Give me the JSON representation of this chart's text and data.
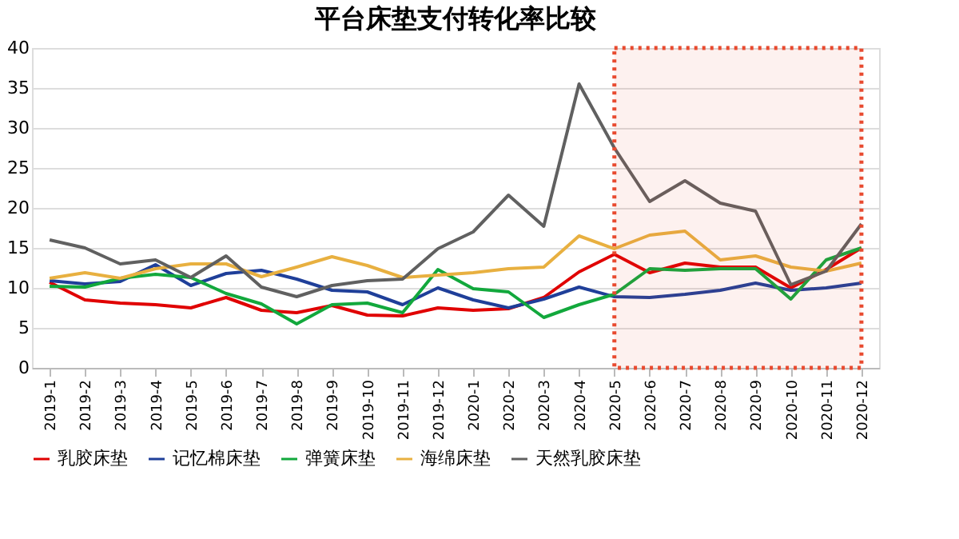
{
  "chart_data": {
    "type": "line",
    "title": "平台床垫支付转化率比较",
    "categories": [
      "2019-1",
      "2019-2",
      "2019-3",
      "2019-4",
      "2019-5",
      "2019-6",
      "2019-7",
      "2019-8",
      "2019-9",
      "2019-10",
      "2019-11",
      "2019-12",
      "2020-1",
      "2020-2",
      "2020-3",
      "2020-4",
      "2020-5",
      "2020-6",
      "2020-7",
      "2020-8",
      "2020-9",
      "2020-10",
      "2020-11",
      "2020-12"
    ],
    "series": [
      {
        "name": "乳胶床垫",
        "color": "#e00000",
        "values": [
          10.7,
          8.5,
          8.1,
          7.9,
          7.5,
          8.8,
          7.2,
          6.9,
          7.8,
          6.6,
          6.5,
          7.5,
          7.2,
          7.4,
          8.8,
          12,
          14.2,
          11.9,
          13.1,
          12.6,
          12.6,
          10,
          12.3,
          15
        ]
      },
      {
        "name": "记忆棉床垫",
        "color": "#1f3f99",
        "values": [
          10.9,
          10.5,
          10.8,
          12.9,
          10.3,
          11.8,
          12.2,
          11.1,
          9.7,
          9.5,
          7.9,
          10,
          8.5,
          7.5,
          8.6,
          10.1,
          8.9,
          8.8,
          9.2,
          9.7,
          10.6,
          9.7,
          10,
          10.6
        ]
      },
      {
        "name": "弹簧床垫",
        "color": "#12a83c",
        "values": [
          10.2,
          10.1,
          11.2,
          11.7,
          11.3,
          9.3,
          8,
          5.5,
          7.9,
          8.1,
          6.9,
          12.3,
          9.9,
          9.5,
          6.3,
          7.9,
          9.2,
          12.4,
          12.2,
          12.4,
          12.4,
          8.6,
          13.5,
          15
        ]
      },
      {
        "name": "海绵床垫",
        "color": "#e8b040",
        "values": [
          11.2,
          11.9,
          11.2,
          12.4,
          13,
          13,
          11.4,
          12.6,
          13.9,
          12.8,
          11.3,
          11.6,
          11.9,
          12.4,
          12.6,
          16.5,
          14.9,
          16.6,
          17.1,
          13.5,
          14,
          12.6,
          12.1,
          13.1
        ]
      },
      {
        "name": "天然乳胶床垫",
        "color": "#606060",
        "values": [
          16,
          15,
          13,
          13.5,
          11.3,
          14,
          10.1,
          8.9,
          10.3,
          10.9,
          11.1,
          14.9,
          17,
          21.6,
          17.7,
          35.5,
          27.5,
          20.8,
          23.4,
          20.6,
          19.6,
          10.4,
          12.1,
          18
        ]
      }
    ],
    "ylim": [
      0,
      40
    ],
    "yticks": [
      0,
      5,
      10,
      15,
      20,
      25,
      30,
      35,
      40
    ],
    "bands": [
      {
        "axis": "x",
        "from": "2020-5",
        "to": "2020-12",
        "color": "#e84a2f"
      }
    ],
    "grid": "y",
    "legend": "bottom",
    "marker": "none",
    "line_style": "solid"
  }
}
